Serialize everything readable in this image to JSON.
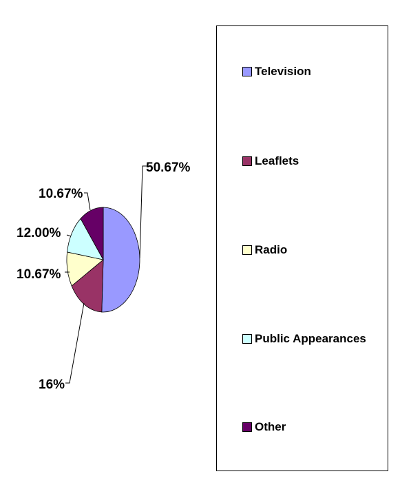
{
  "chart_data": {
    "type": "pie",
    "slices": [
      {
        "name": "Television",
        "value": 50.67,
        "label": "50.67%",
        "color": "#9999FF"
      },
      {
        "name": "Leaflets",
        "value": 16,
        "label": "16%",
        "color": "#993366"
      },
      {
        "name": "Radio",
        "value": 10.67,
        "label": "10.67%",
        "color": "#FFFFCC"
      },
      {
        "name": "Public Appearances",
        "value": 12.0,
        "label": "12.00%",
        "color": "#CCFFFF"
      },
      {
        "name": "Other",
        "value": 10.67,
        "label": "10.67%",
        "color": "#660066"
      }
    ],
    "legend_position": "right",
    "start_angle": "top",
    "direction": "clockwise"
  }
}
